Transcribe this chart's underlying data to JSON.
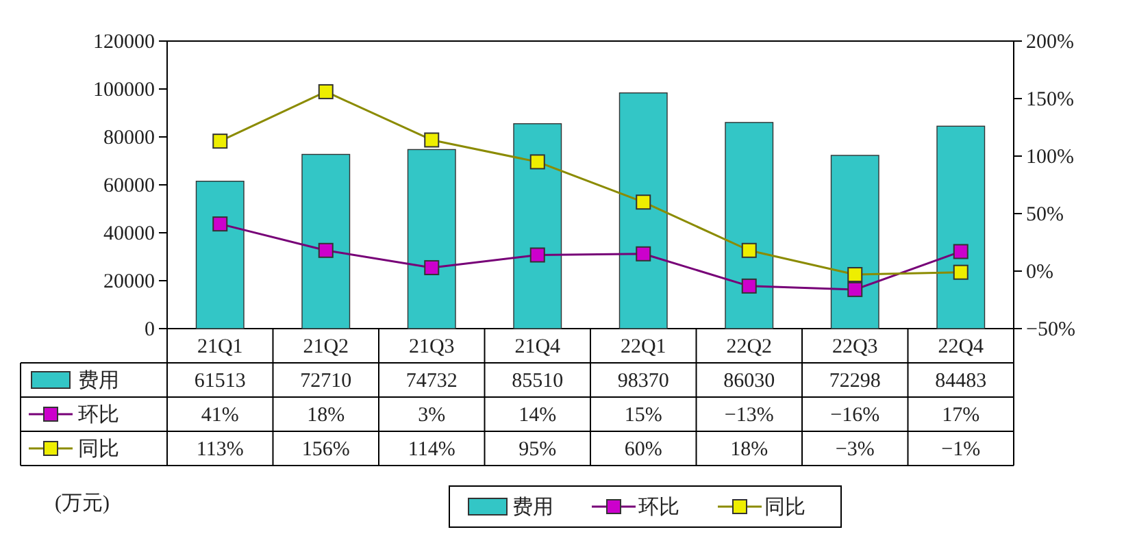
{
  "chart_data": {
    "type": "bar",
    "categories": [
      "21Q1",
      "21Q2",
      "21Q3",
      "21Q4",
      "22Q1",
      "22Q2",
      "22Q3",
      "22Q4"
    ],
    "series": [
      {
        "name": "费用",
        "color": "#33c6c6",
        "values": [
          61513,
          72710,
          74732,
          85510,
          98370,
          86030,
          72298,
          84483
        ],
        "value_labels": [
          "61513",
          "72710",
          "74732",
          "85510",
          "98370",
          "86030",
          "72298",
          "84483"
        ]
      },
      {
        "name": "环比",
        "type": "line",
        "axis": "y2",
        "color": "#cc00cc",
        "values": [
          41,
          18,
          3,
          14,
          15,
          -13,
          -16,
          17
        ],
        "value_labels": [
          "41%",
          "18%",
          "3%",
          "14%",
          "15%",
          "−13%",
          "−16%",
          "17%"
        ]
      },
      {
        "name": "同比",
        "type": "line",
        "axis": "y2",
        "color": "#eeee00",
        "values": [
          113,
          156,
          114,
          95,
          60,
          18,
          -3,
          -1
        ],
        "value_labels": [
          "113%",
          "156%",
          "114%",
          "95%",
          "60%",
          "18%",
          "−3%",
          "−1%"
        ]
      }
    ],
    "ylim": [
      0,
      120000
    ],
    "yticks": [
      0,
      20000,
      40000,
      60000,
      80000,
      100000,
      120000
    ],
    "y2lim": [
      -50,
      200
    ],
    "y2ticks": [
      {
        "value": -50,
        "label": "−50%"
      },
      {
        "value": 0,
        "label": "0%"
      },
      {
        "value": 50,
        "label": "50%"
      },
      {
        "value": 100,
        "label": "100%"
      },
      {
        "value": 150,
        "label": "150%"
      },
      {
        "value": 200,
        "label": "200%"
      }
    ],
    "marker": "square",
    "legend": "bottom",
    "annotations": [
      "(万元)"
    ]
  }
}
